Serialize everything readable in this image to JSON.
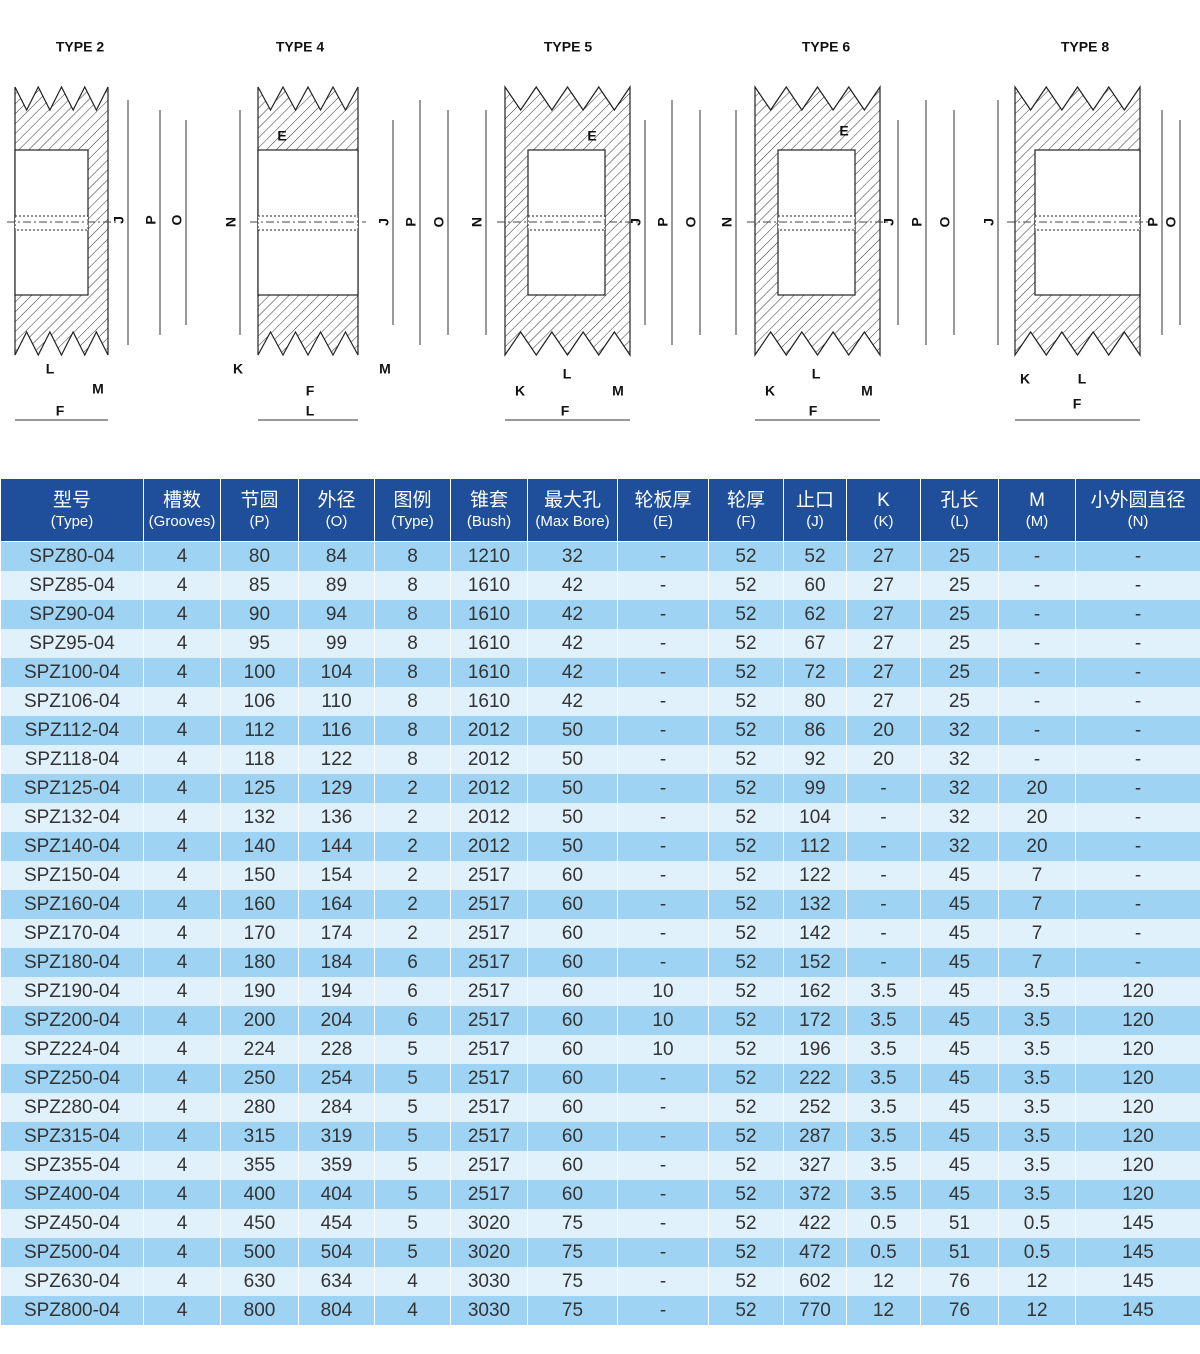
{
  "diagrams": [
    {
      "title": "TYPE 2",
      "labels": [
        "L",
        "M",
        "F",
        "J",
        "P",
        "O"
      ]
    },
    {
      "title": "TYPE 4",
      "labels": [
        "E",
        "N",
        "J",
        "P",
        "O",
        "K",
        "M",
        "F",
        "L"
      ]
    },
    {
      "title": "TYPE 5",
      "labels": [
        "E",
        "N",
        "J",
        "P",
        "O",
        "K",
        "L",
        "M",
        "F"
      ]
    },
    {
      "title": "TYPE 6",
      "labels": [
        "E",
        "N",
        "J",
        "P",
        "O",
        "K",
        "L",
        "M",
        "F"
      ]
    },
    {
      "title": "TYPE 8",
      "labels": [
        "J",
        "P",
        "O",
        "K",
        "L",
        "F"
      ]
    }
  ],
  "table": {
    "columns": [
      {
        "label": "型号",
        "sub": "(Type)"
      },
      {
        "label": "槽数",
        "sub": "(Grooves)"
      },
      {
        "label": "节圆",
        "sub": "(P)"
      },
      {
        "label": "外径",
        "sub": "(O)"
      },
      {
        "label": "图例",
        "sub": "(Type)"
      },
      {
        "label": "锥套",
        "sub": "(Bush)"
      },
      {
        "label": "最大孔",
        "sub": "(Max Bore)"
      },
      {
        "label": "轮板厚",
        "sub": "(E)"
      },
      {
        "label": "轮厚",
        "sub": "(F)"
      },
      {
        "label": "止口",
        "sub": "(J)"
      },
      {
        "label": "K",
        "sub": "(K)"
      },
      {
        "label": "孔长",
        "sub": "(L)"
      },
      {
        "label": "M",
        "sub": "(M)"
      },
      {
        "label": "小外圆直径",
        "sub": "(N)"
      }
    ],
    "rows": [
      [
        "SPZ80-04",
        "4",
        "80",
        "84",
        "8",
        "1210",
        "32",
        "-",
        "52",
        "52",
        "27",
        "25",
        "-",
        "-"
      ],
      [
        "SPZ85-04",
        "4",
        "85",
        "89",
        "8",
        "1610",
        "42",
        "-",
        "52",
        "60",
        "27",
        "25",
        "-",
        "-"
      ],
      [
        "SPZ90-04",
        "4",
        "90",
        "94",
        "8",
        "1610",
        "42",
        "-",
        "52",
        "62",
        "27",
        "25",
        "-",
        "-"
      ],
      [
        "SPZ95-04",
        "4",
        "95",
        "99",
        "8",
        "1610",
        "42",
        "-",
        "52",
        "67",
        "27",
        "25",
        "-",
        "-"
      ],
      [
        "SPZ100-04",
        "4",
        "100",
        "104",
        "8",
        "1610",
        "42",
        "-",
        "52",
        "72",
        "27",
        "25",
        "-",
        "-"
      ],
      [
        "SPZ106-04",
        "4",
        "106",
        "110",
        "8",
        "1610",
        "42",
        "-",
        "52",
        "80",
        "27",
        "25",
        "-",
        "-"
      ],
      [
        "SPZ112-04",
        "4",
        "112",
        "116",
        "8",
        "2012",
        "50",
        "-",
        "52",
        "86",
        "20",
        "32",
        "-",
        "-"
      ],
      [
        "SPZ118-04",
        "4",
        "118",
        "122",
        "8",
        "2012",
        "50",
        "-",
        "52",
        "92",
        "20",
        "32",
        "-",
        "-"
      ],
      [
        "SPZ125-04",
        "4",
        "125",
        "129",
        "2",
        "2012",
        "50",
        "-",
        "52",
        "99",
        "-",
        "32",
        "20",
        "-"
      ],
      [
        "SPZ132-04",
        "4",
        "132",
        "136",
        "2",
        "2012",
        "50",
        "-",
        "52",
        "104",
        "-",
        "32",
        "20",
        "-"
      ],
      [
        "SPZ140-04",
        "4",
        "140",
        "144",
        "2",
        "2012",
        "50",
        "-",
        "52",
        "112",
        "-",
        "32",
        "20",
        "-"
      ],
      [
        "SPZ150-04",
        "4",
        "150",
        "154",
        "2",
        "2517",
        "60",
        "-",
        "52",
        "122",
        "-",
        "45",
        "7",
        "-"
      ],
      [
        "SPZ160-04",
        "4",
        "160",
        "164",
        "2",
        "2517",
        "60",
        "-",
        "52",
        "132",
        "-",
        "45",
        "7",
        "-"
      ],
      [
        "SPZ170-04",
        "4",
        "170",
        "174",
        "2",
        "2517",
        "60",
        "-",
        "52",
        "142",
        "-",
        "45",
        "7",
        "-"
      ],
      [
        "SPZ180-04",
        "4",
        "180",
        "184",
        "6",
        "2517",
        "60",
        "-",
        "52",
        "152",
        "-",
        "45",
        "7",
        "-"
      ],
      [
        "SPZ190-04",
        "4",
        "190",
        "194",
        "6",
        "2517",
        "60",
        "10",
        "52",
        "162",
        "3.5",
        "45",
        "3.5",
        "120"
      ],
      [
        "SPZ200-04",
        "4",
        "200",
        "204",
        "6",
        "2517",
        "60",
        "10",
        "52",
        "172",
        "3.5",
        "45",
        "3.5",
        "120"
      ],
      [
        "SPZ224-04",
        "4",
        "224",
        "228",
        "5",
        "2517",
        "60",
        "10",
        "52",
        "196",
        "3.5",
        "45",
        "3.5",
        "120"
      ],
      [
        "SPZ250-04",
        "4",
        "250",
        "254",
        "5",
        "2517",
        "60",
        "-",
        "52",
        "222",
        "3.5",
        "45",
        "3.5",
        "120"
      ],
      [
        "SPZ280-04",
        "4",
        "280",
        "284",
        "5",
        "2517",
        "60",
        "-",
        "52",
        "252",
        "3.5",
        "45",
        "3.5",
        "120"
      ],
      [
        "SPZ315-04",
        "4",
        "315",
        "319",
        "5",
        "2517",
        "60",
        "-",
        "52",
        "287",
        "3.5",
        "45",
        "3.5",
        "120"
      ],
      [
        "SPZ355-04",
        "4",
        "355",
        "359",
        "5",
        "2517",
        "60",
        "-",
        "52",
        "327",
        "3.5",
        "45",
        "3.5",
        "120"
      ],
      [
        "SPZ400-04",
        "4",
        "400",
        "404",
        "5",
        "2517",
        "60",
        "-",
        "52",
        "372",
        "3.5",
        "45",
        "3.5",
        "120"
      ],
      [
        "SPZ450-04",
        "4",
        "450",
        "454",
        "5",
        "3020",
        "75",
        "-",
        "52",
        "422",
        "0.5",
        "51",
        "0.5",
        "145"
      ],
      [
        "SPZ500-04",
        "4",
        "500",
        "504",
        "5",
        "3020",
        "75",
        "-",
        "52",
        "472",
        "0.5",
        "51",
        "0.5",
        "145"
      ],
      [
        "SPZ630-04",
        "4",
        "630",
        "634",
        "4",
        "3030",
        "75",
        "-",
        "52",
        "602",
        "12",
        "76",
        "12",
        "145"
      ],
      [
        "SPZ800-04",
        "4",
        "800",
        "804",
        "4",
        "3030",
        "75",
        "-",
        "52",
        "770",
        "12",
        "76",
        "12",
        "145"
      ]
    ]
  }
}
